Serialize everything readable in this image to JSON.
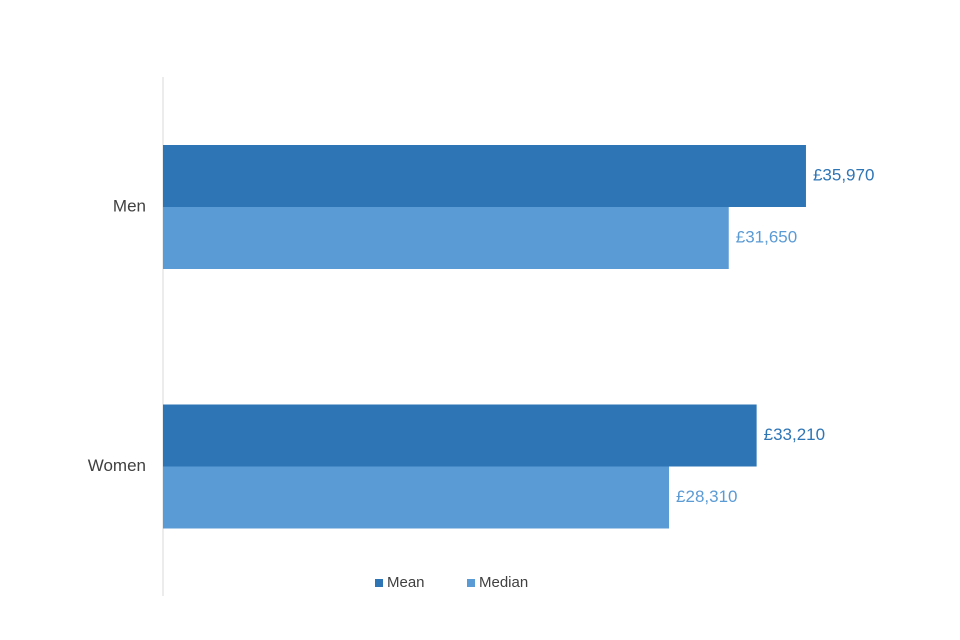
{
  "chart_data": {
    "type": "bar",
    "orientation": "horizontal",
    "categories": [
      "Men",
      "Women"
    ],
    "series": [
      {
        "name": "Mean",
        "color": "#2e75b6",
        "values": [
          35970,
          33210
        ],
        "value_labels": [
          "£35,970",
          "£33,210"
        ]
      },
      {
        "name": "Median",
        "color": "#5b9bd5",
        "values": [
          31650,
          28310
        ],
        "value_labels": [
          "£31,650",
          "£28,310"
        ]
      }
    ],
    "xlim": [
      0,
      40000
    ],
    "legend": "bottom"
  }
}
